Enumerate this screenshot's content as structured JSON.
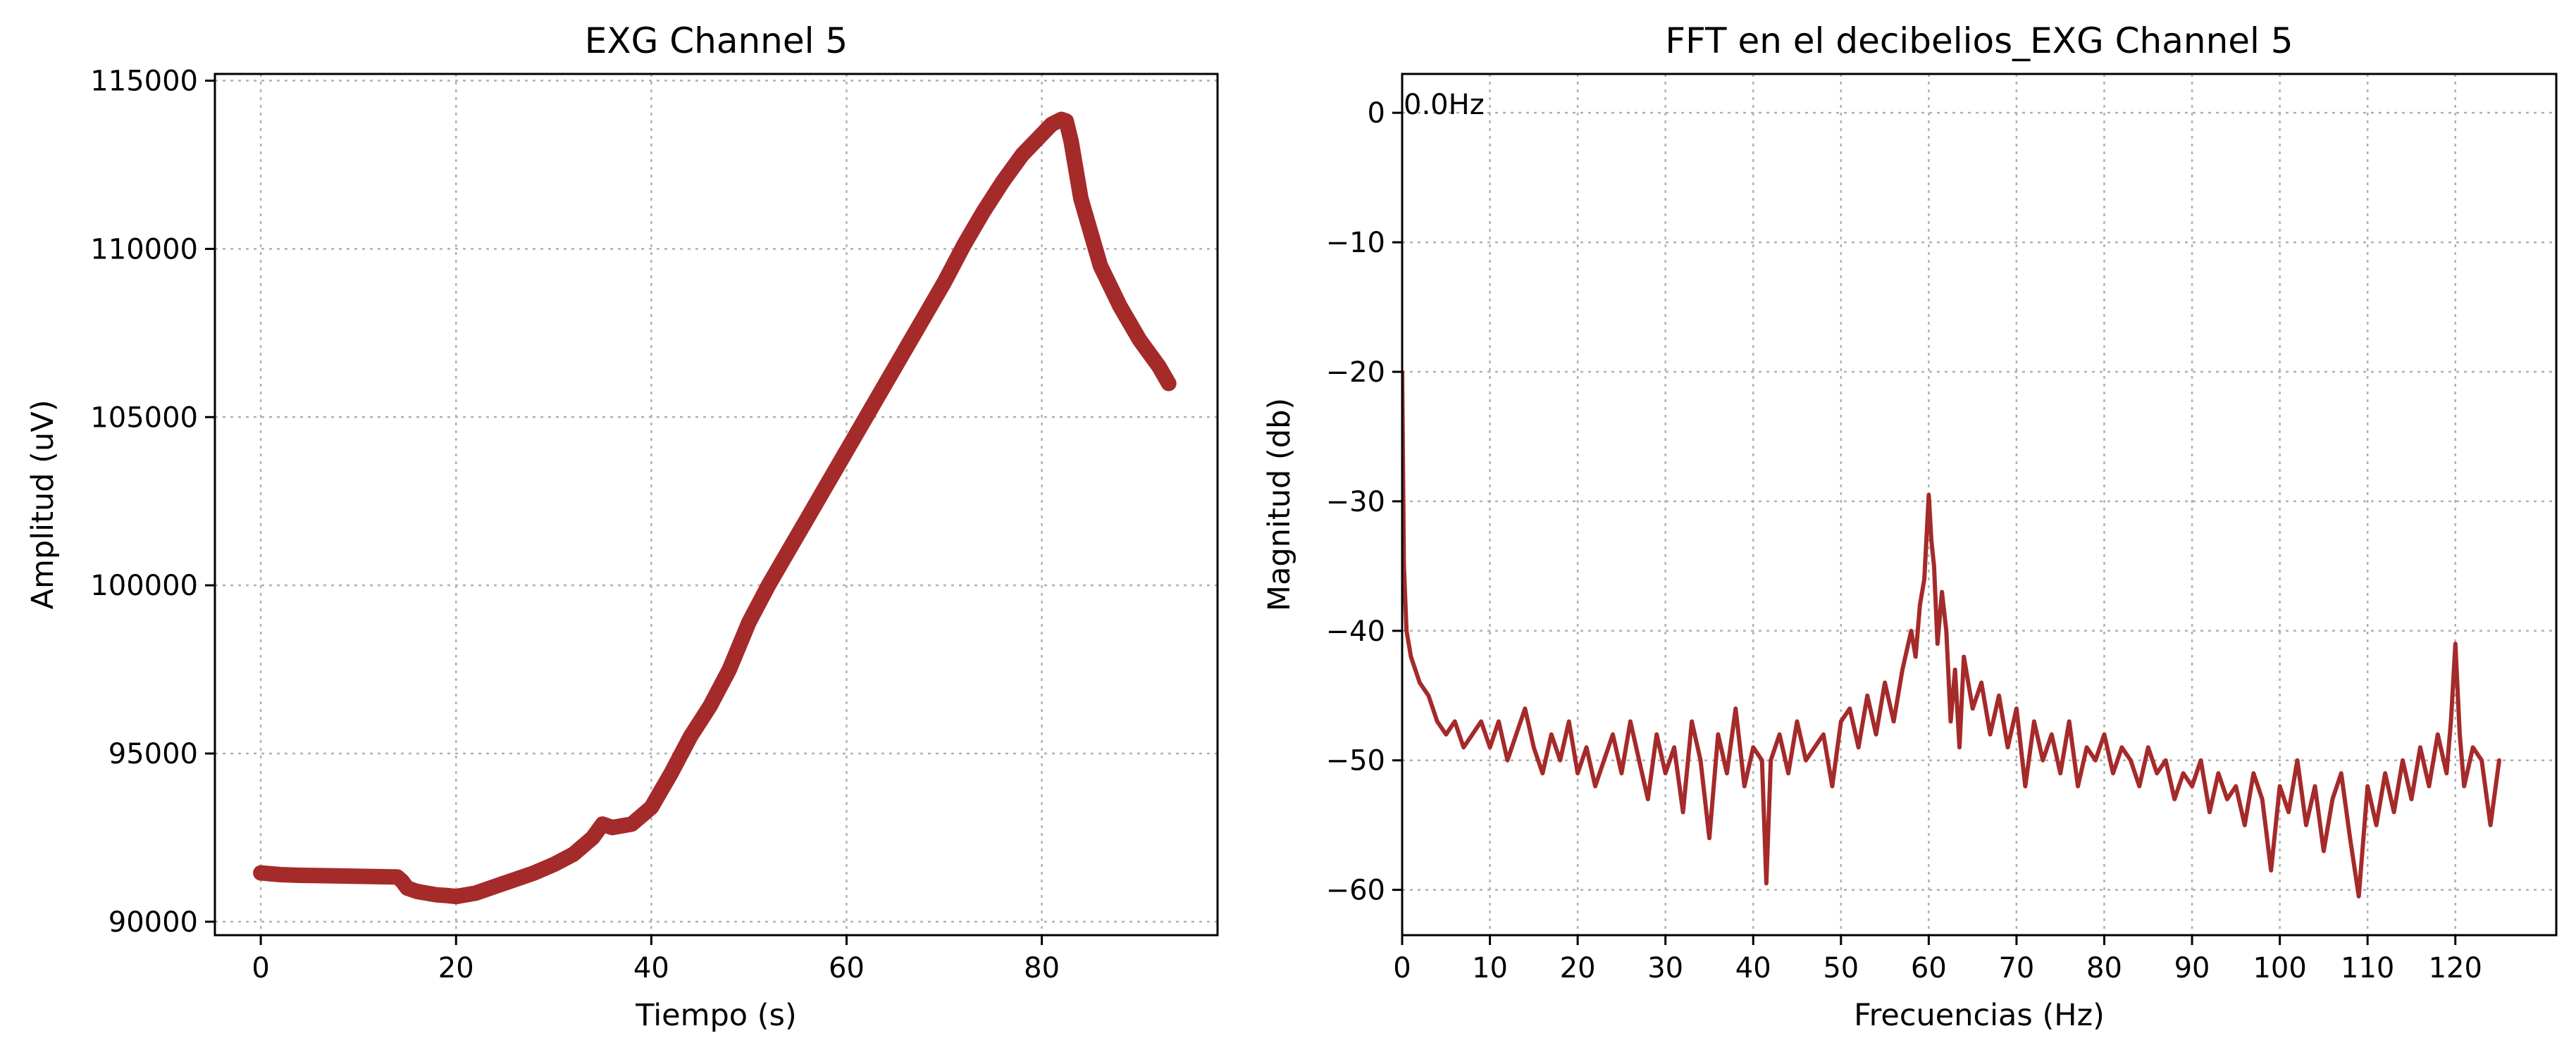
{
  "chart_data": [
    {
      "type": "line",
      "title": "EXG Channel 5",
      "xlabel": "Tiempo (s)",
      "ylabel": "Amplitud (uV)",
      "xlim": [
        -4.7,
        98
      ],
      "ylim": [
        89600,
        115200
      ],
      "xticks": [
        0,
        20,
        40,
        60,
        80
      ],
      "yticks": [
        90000,
        95000,
        100000,
        105000,
        110000,
        115000
      ],
      "xtick_labels": [
        "0",
        "20",
        "40",
        "60",
        "80"
      ],
      "ytick_labels": [
        "90000",
        "95000",
        "100000",
        "105000",
        "110000",
        "115000"
      ],
      "grid": true,
      "color": "#a52a2a",
      "series": [
        {
          "x": [
            0,
            2,
            4,
            6,
            8,
            10,
            12,
            14,
            14.5,
            15,
            16,
            17,
            18,
            19,
            20,
            22,
            24,
            26,
            28,
            30,
            32,
            34,
            35,
            36,
            38,
            40,
            42,
            44,
            46,
            48,
            50,
            52,
            54,
            56,
            58,
            60,
            62,
            64,
            66,
            68,
            70,
            72,
            74,
            76,
            78,
            80,
            81,
            82,
            82.5,
            83,
            84,
            86,
            88,
            90,
            92,
            93
          ],
          "y": [
            91450,
            91400,
            91380,
            91370,
            91360,
            91350,
            91340,
            91330,
            91200,
            91000,
            90900,
            90850,
            90800,
            90780,
            90750,
            90850,
            91050,
            91250,
            91450,
            91700,
            92000,
            92500,
            92900,
            92800,
            92900,
            93400,
            94400,
            95500,
            96400,
            97500,
            98900,
            100000,
            101000,
            102000,
            103000,
            104000,
            105000,
            106000,
            107000,
            108000,
            109000,
            110100,
            111100,
            112000,
            112800,
            113400,
            113700,
            113850,
            113800,
            113200,
            111500,
            109500,
            108300,
            107300,
            106500,
            106000
          ]
        }
      ]
    },
    {
      "type": "line",
      "title": "FFT en el decibelios_EXG Channel 5",
      "xlabel": "Frecuencias (Hz)",
      "ylabel": "Magnitud (db)",
      "xlim": [
        0,
        131.5
      ],
      "ylim": [
        -63.5,
        3
      ],
      "xticks": [
        0,
        10,
        20,
        30,
        40,
        50,
        60,
        70,
        80,
        90,
        100,
        110,
        120
      ],
      "yticks": [
        0,
        -10,
        -20,
        -30,
        -40,
        -50,
        -60
      ],
      "xtick_labels": [
        "0",
        "10",
        "20",
        "30",
        "40",
        "50",
        "60",
        "70",
        "80",
        "90",
        "100",
        "110",
        "120"
      ],
      "ytick_labels": [
        "0",
        "−10",
        "−20",
        "−30",
        "−40",
        "−50",
        "−60"
      ],
      "grid": true,
      "color": "#a52a2a",
      "annotations": [
        {
          "text": "0.0Hz",
          "x": 0,
          "y": 0
        }
      ],
      "series": [
        {
          "x": [
            0.0,
            0.2,
            0.5,
            1,
            1.5,
            2,
            3,
            4,
            5,
            6,
            7,
            8,
            9,
            10,
            11,
            12,
            13,
            14,
            15,
            16,
            17,
            18,
            19,
            20,
            21,
            22,
            23,
            24,
            25,
            26,
            27,
            28,
            29,
            30,
            31,
            32,
            33,
            34,
            35,
            36,
            37,
            38,
            39,
            40,
            41,
            41.5,
            42,
            43,
            44,
            45,
            46,
            47,
            48,
            49,
            50,
            51,
            52,
            53,
            54,
            55,
            56,
            57,
            58,
            58.5,
            59,
            59.5,
            60,
            60.3,
            60.6,
            61,
            61.5,
            62,
            62.5,
            63,
            63.5,
            64,
            65,
            66,
            67,
            68,
            69,
            70,
            71,
            72,
            73,
            74,
            75,
            76,
            77,
            78,
            79,
            80,
            81,
            82,
            83,
            84,
            85,
            86,
            87,
            88,
            89,
            90,
            91,
            92,
            93,
            94,
            95,
            96,
            97,
            98,
            99,
            100,
            101,
            102,
            103,
            104,
            105,
            106,
            107,
            108,
            109,
            110,
            111,
            112,
            113,
            114,
            115,
            116,
            117,
            118,
            119,
            119.5,
            120,
            120.5,
            121,
            122,
            123,
            124,
            125
          ],
          "y": [
            -20,
            -35,
            -40,
            -42,
            -43,
            -44,
            -45,
            -47,
            -48,
            -47,
            -49,
            -48,
            -47,
            -49,
            -47,
            -50,
            -48,
            -46,
            -49,
            -51,
            -48,
            -50,
            -47,
            -51,
            -49,
            -52,
            -50,
            -48,
            -51,
            -47,
            -50,
            -53,
            -48,
            -51,
            -49,
            -54,
            -47,
            -50,
            -56,
            -48,
            -51,
            -46,
            -52,
            -49,
            -50,
            -59.5,
            -50,
            -48,
            -51,
            -47,
            -50,
            -49,
            -48,
            -52,
            -47,
            -46,
            -49,
            -45,
            -48,
            -44,
            -47,
            -43,
            -40,
            -42,
            -38,
            -36,
            -29.5,
            -33,
            -35,
            -41,
            -37,
            -40,
            -47,
            -43,
            -49,
            -42,
            -46,
            -44,
            -48,
            -45,
            -49,
            -46,
            -52,
            -47,
            -50,
            -48,
            -51,
            -47,
            -52,
            -49,
            -50,
            -48,
            -51,
            -49,
            -50,
            -52,
            -49,
            -51,
            -50,
            -53,
            -51,
            -52,
            -50,
            -54,
            -51,
            -53,
            -52,
            -55,
            -51,
            -53,
            -58.5,
            -52,
            -54,
            -50,
            -55,
            -52,
            -57,
            -53,
            -51,
            -56,
            -60.5,
            -52,
            -55,
            -51,
            -54,
            -50,
            -53,
            -49,
            -52,
            -48,
            -51,
            -47,
            -41,
            -48,
            -52,
            -49,
            -50,
            -55,
            -50
          ]
        }
      ]
    }
  ]
}
